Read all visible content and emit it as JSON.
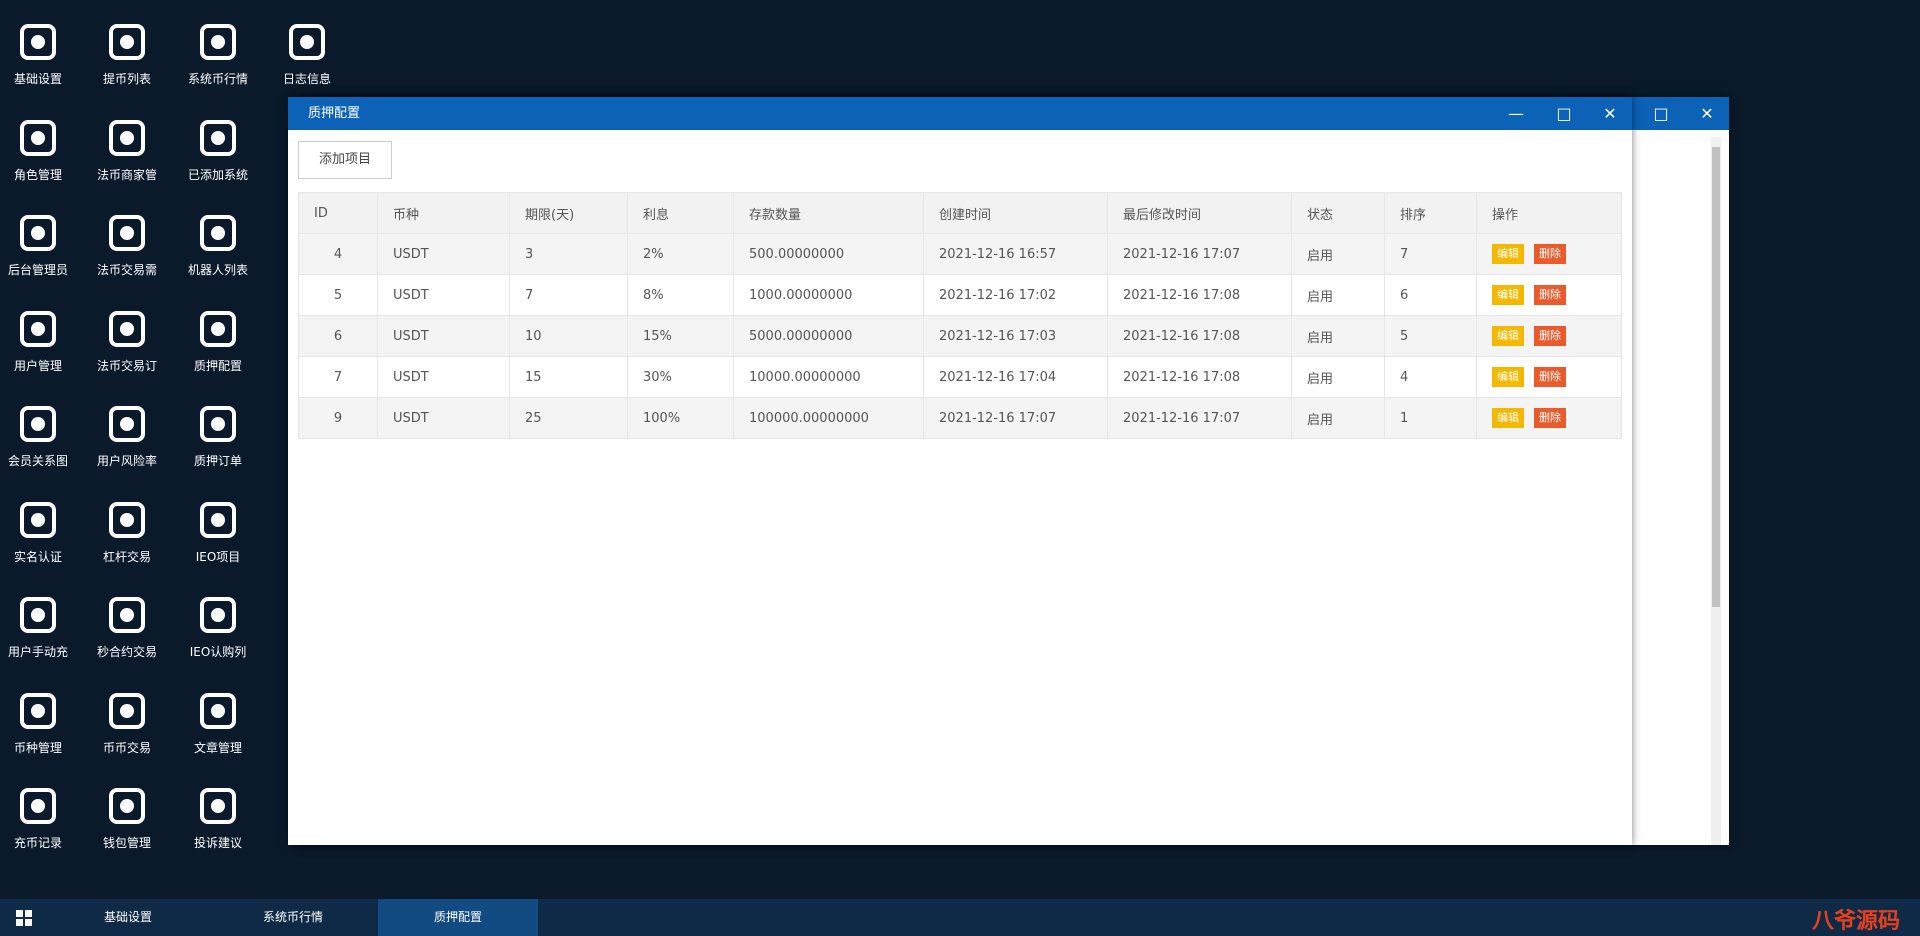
{
  "desktop_icons": [
    [
      "基础设置",
      "角色管理",
      "后台管理员",
      "用户管理",
      "会员关系图",
      "实名认证",
      "用户手动充",
      "币种管理",
      "充币记录"
    ],
    [
      "提币列表",
      "法币商家管",
      "法币交易需",
      "法币交易订",
      "用户风险率",
      "杠杆交易",
      "秒合约交易",
      "币币交易",
      "钱包管理"
    ],
    [
      "系统币行情",
      "已添加系统",
      "机器人列表",
      "质押配置",
      "质押订单",
      "IEO项目",
      "IEO认购列",
      "文章管理",
      "投诉建议"
    ],
    [
      "日志信息"
    ]
  ],
  "window": {
    "title": "质押配置",
    "add_button": "添加项目",
    "table": {
      "headers": [
        "ID",
        "币种",
        "期限(天)",
        "利息",
        "存款数量",
        "创建时间",
        "最后修改时间",
        "状态",
        "排序",
        "操作"
      ],
      "rows": [
        [
          "4",
          "USDT",
          "3",
          "2%",
          "500.00000000",
          "2021-12-16 16:57",
          "2021-12-16 17:07",
          "启用",
          "7"
        ],
        [
          "5",
          "USDT",
          "7",
          "8%",
          "1000.00000000",
          "2021-12-16 17:02",
          "2021-12-16 17:08",
          "启用",
          "6"
        ],
        [
          "6",
          "USDT",
          "10",
          "15%",
          "5000.00000000",
          "2021-12-16 17:03",
          "2021-12-16 17:08",
          "启用",
          "5"
        ],
        [
          "7",
          "USDT",
          "15",
          "30%",
          "10000.00000000",
          "2021-12-16 17:04",
          "2021-12-16 17:08",
          "启用",
          "4"
        ],
        [
          "9",
          "USDT",
          "25",
          "100%",
          "100000.00000000",
          "2021-12-16 17:07",
          "2021-12-16 17:07",
          "启用",
          "1"
        ]
      ],
      "edit": "编辑",
      "delete": "删除"
    }
  },
  "taskbar": {
    "tabs": [
      "基础设置",
      "系统币行情",
      "质押配置"
    ]
  },
  "watermark": "八爷源码"
}
